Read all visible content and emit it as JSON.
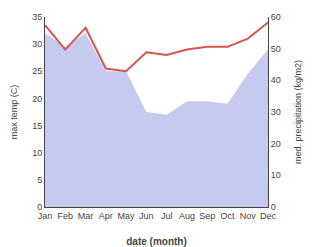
{
  "chart_data": {
    "type": "line",
    "categories": [
      "Jan",
      "Feb",
      "Mar",
      "Apr",
      "May",
      "Jun",
      "Jul",
      "Aug",
      "Sep",
      "Oct",
      "Nov",
      "Dec"
    ],
    "series": [
      {
        "type": "area",
        "color": "#c5caee",
        "values": [
          32.0,
          29.5,
          32.0,
          25.0,
          25.0,
          17.5,
          17.0,
          19.5,
          19.5,
          19.0,
          24.5,
          29.0
        ]
      },
      {
        "type": "line",
        "color": "#d9534f",
        "values": [
          33.5,
          29.0,
          33.0,
          25.5,
          25.0,
          28.5,
          28.0,
          29.0,
          29.5,
          29.5,
          31.0,
          34.0
        ]
      }
    ],
    "xlabel": "date (month)",
    "ylabel": "max temp (C)",
    "y2label": "med. precipitation (kg/m2)",
    "ylim": [
      0,
      35
    ],
    "yticks": [
      0,
      5,
      10,
      15,
      20,
      25,
      30,
      35
    ],
    "y2lim": [
      0,
      60
    ],
    "y2ticks": [
      0,
      10,
      20,
      30,
      40,
      50,
      60
    ],
    "grid": false
  }
}
